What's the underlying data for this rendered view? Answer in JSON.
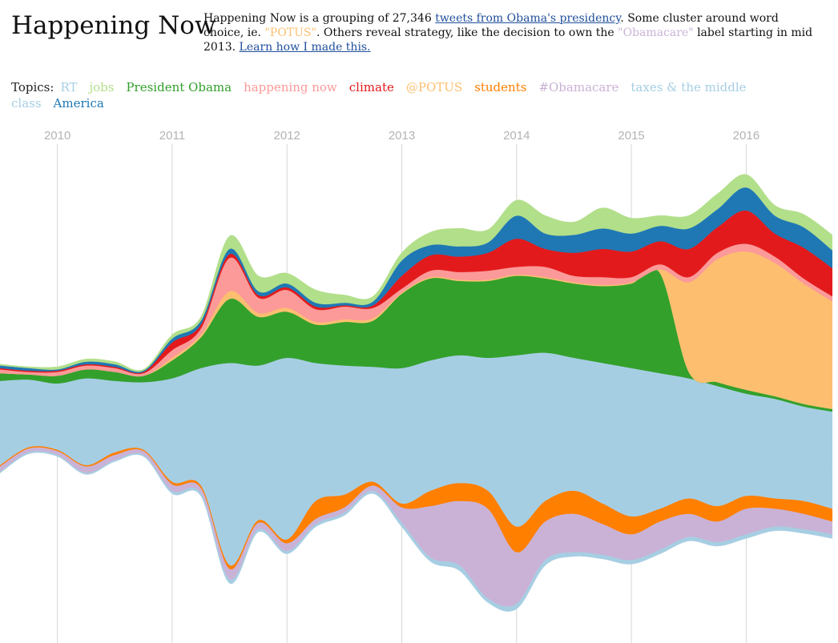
{
  "header": {
    "title": "Happening Now",
    "intro": {
      "t1": "Happening Now is a grouping of 27,346 ",
      "link_tweets": "tweets from Obama's presidency",
      "t2": ". Some cluster around word choice, ie. ",
      "hl_potus": "\"POTUS\"",
      "t3": ". Others reveal strategy, like the decision to own the ",
      "hl_obamacare": "\"Obamacare\"",
      "t4": " label starting in mid 2013. ",
      "link_learn": "Learn how I made this."
    }
  },
  "topics_label": "Topics:",
  "chart_data": {
    "type": "area",
    "title": "",
    "xlabel": "",
    "ylabel": "",
    "grid": true,
    "legend": "top",
    "x_ticks": [
      "2010",
      "2011",
      "2012",
      "2013",
      "2014",
      "2015",
      "2016"
    ],
    "x": [
      2009.5,
      2009.75,
      2010.0,
      2010.25,
      2010.5,
      2010.75,
      2011.0,
      2011.25,
      2011.5,
      2011.75,
      2012.0,
      2012.25,
      2012.5,
      2012.75,
      2013.0,
      2013.25,
      2013.5,
      2013.75,
      2014.0,
      2014.25,
      2014.5,
      2014.75,
      2015.0,
      2015.25,
      2015.5,
      2015.75,
      2016.0,
      2016.25,
      2016.5,
      2016.75
    ],
    "series_above": [
      {
        "name": "taxes & the middle class",
        "color": "#a6cee3",
        "values": [
          34,
          35,
          32,
          36,
          34,
          33,
          36,
          44,
          48,
          46,
          52,
          48,
          46,
          45,
          44,
          50,
          54,
          52,
          54,
          56,
          52,
          48,
          44,
          40,
          36,
          30,
          24,
          20,
          14,
          10
        ]
      },
      {
        "name": "President Obama",
        "color": "#33a02c",
        "values": [
          6,
          4,
          6,
          7,
          7,
          5,
          14,
          24,
          50,
          38,
          36,
          30,
          34,
          36,
          58,
          64,
          58,
          60,
          62,
          58,
          58,
          60,
          66,
          78,
          5,
          3,
          3,
          2,
          2,
          2
        ]
      },
      {
        "name": "@POTUS",
        "color": "#fdbf6f",
        "values": [
          0,
          0,
          0,
          0,
          0,
          0,
          2,
          2,
          6,
          3,
          3,
          2,
          2,
          2,
          1,
          1,
          1,
          1,
          1,
          1,
          1,
          1,
          1,
          3,
          70,
          96,
          108,
          104,
          94,
          84
        ]
      },
      {
        "name": "happening now",
        "color": "#fb9a99",
        "values": [
          3,
          2,
          3,
          3,
          3,
          2,
          6,
          5,
          26,
          12,
          14,
          10,
          10,
          8,
          3,
          5,
          6,
          7,
          6,
          8,
          5,
          6,
          4,
          4,
          4,
          5,
          6,
          5,
          4,
          4
        ]
      },
      {
        "name": "climate",
        "color": "#e31a1c",
        "values": [
          1,
          1,
          1,
          1,
          1,
          1,
          6,
          3,
          3,
          2,
          2,
          2,
          1,
          2,
          10,
          12,
          12,
          14,
          22,
          14,
          18,
          22,
          20,
          18,
          22,
          20,
          26,
          18,
          24,
          22
        ]
      },
      {
        "name": "America",
        "color": "#1f78b4",
        "values": [
          2,
          2,
          1,
          2,
          2,
          1,
          3,
          3,
          4,
          3,
          3,
          3,
          2,
          3,
          12,
          8,
          8,
          8,
          18,
          12,
          14,
          16,
          14,
          12,
          16,
          14,
          18,
          14,
          16,
          14
        ]
      },
      {
        "name": "jobs",
        "color": "#b2df8a",
        "values": [
          1,
          1,
          2,
          2,
          2,
          1,
          3,
          3,
          10,
          12,
          8,
          10,
          6,
          4,
          6,
          10,
          14,
          10,
          12,
          14,
          10,
          16,
          12,
          8,
          10,
          12,
          10,
          8,
          10,
          12
        ]
      }
    ],
    "series_below": [
      {
        "name": "taxes & the middle class",
        "color": "#a6cee3",
        "values": [
          32,
          18,
          20,
          32,
          22,
          20,
          45,
          48,
          110,
          75,
          90,
          60,
          55,
          45,
          62,
          52,
          46,
          52,
          80,
          60,
          52,
          62,
          72,
          66,
          58,
          64,
          56,
          58,
          60,
          66
        ]
      },
      {
        "name": "students",
        "color": "#ff7f00",
        "values": [
          1,
          1,
          1,
          1,
          2,
          1,
          2,
          2,
          3,
          2,
          3,
          14,
          10,
          3,
          3,
          12,
          14,
          14,
          20,
          16,
          18,
          16,
          14,
          10,
          12,
          12,
          10,
          8,
          10,
          10
        ]
      },
      {
        "name": "#Obamacare",
        "color": "#cab2d6",
        "values": [
          4,
          3,
          3,
          5,
          4,
          3,
          5,
          4,
          8,
          5,
          6,
          4,
          4,
          4,
          12,
          40,
          50,
          70,
          40,
          30,
          30,
          24,
          20,
          22,
          18,
          16,
          20,
          14,
          12,
          10
        ]
      },
      {
        "name": "RT",
        "color": "#a6cee3",
        "values": [
          1,
          1,
          1,
          1,
          1,
          1,
          2,
          2,
          3,
          2,
          2,
          2,
          2,
          2,
          3,
          3,
          4,
          3,
          4,
          4,
          3,
          3,
          3,
          3,
          3,
          3,
          3,
          3,
          3,
          3
        ]
      }
    ]
  },
  "topics": [
    {
      "name": "RT",
      "color": "#a6cee3"
    },
    {
      "name": "jobs",
      "color": "#b2df8a"
    },
    {
      "name": "President Obama",
      "color": "#33a02c"
    },
    {
      "name": "happening now",
      "color": "#fb9a99"
    },
    {
      "name": "climate",
      "color": "#e31a1c"
    },
    {
      "name": "@POTUS",
      "color": "#fdbf6f"
    },
    {
      "name": "students",
      "color": "#ff7f00"
    },
    {
      "name": "#Obamacare",
      "color": "#cab2d6"
    },
    {
      "name": "taxes & the middle class",
      "color": "#a6cee3"
    },
    {
      "name": "America",
      "color": "#1f78b4"
    }
  ]
}
